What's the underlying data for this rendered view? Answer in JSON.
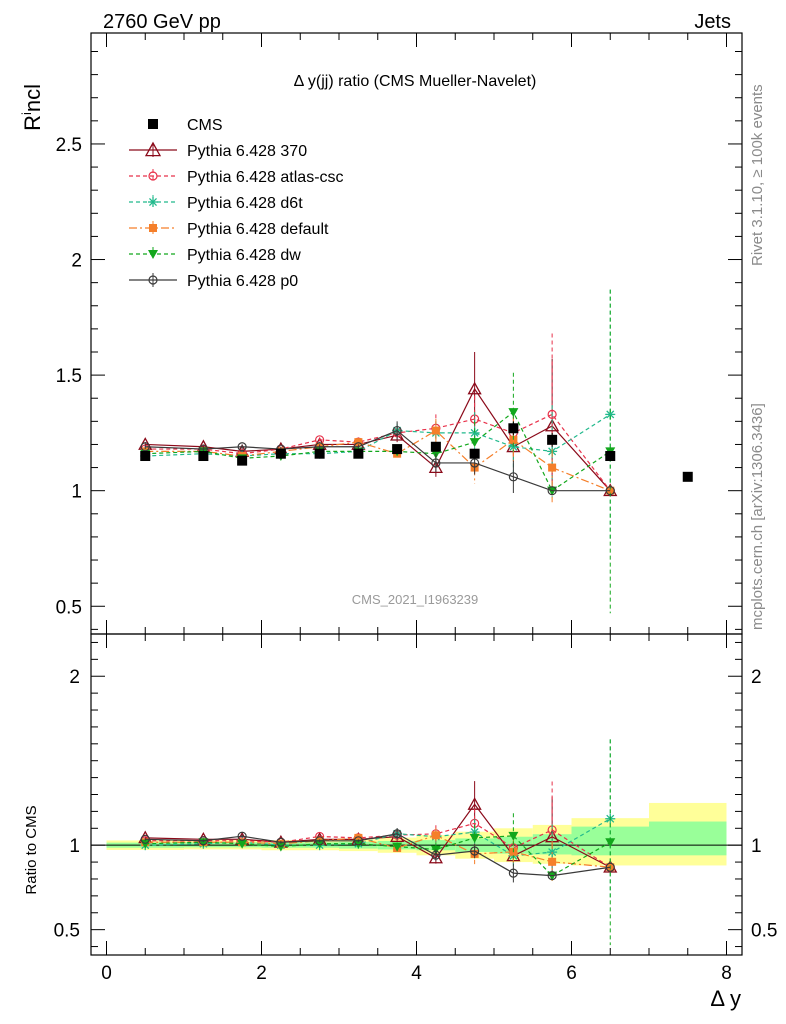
{
  "header": {
    "left": "2760 GeV pp",
    "right": "Jets"
  },
  "side_texts": {
    "rivet": "Rivet 3.1.10, ≥ 100k events",
    "mcplots": "mcplots.cern.ch [arXiv:1306.3436]"
  },
  "chart_data": {
    "type": "scatter",
    "title": "Δ y(jj) ratio (CMS Mueller-Navelet)",
    "ylabel": "R^incl",
    "ratio_ylabel": "Ratio to CMS",
    "xlabel": "Δ y",
    "watermark": "CMS_2021_I1963239",
    "xlim": [
      -0.2,
      8.2
    ],
    "ylim": [
      0.38,
      2.98
    ],
    "ratio_ylim": [
      0.35,
      2.25
    ],
    "x_ticks": [
      "0",
      "2",
      "4",
      "6",
      "8"
    ],
    "y_ticks": [
      "0.5",
      "1",
      "1.5",
      "2",
      "2.5"
    ],
    "ratio_y_ticks": [
      "0.5",
      "1",
      "2"
    ],
    "bands": [
      {
        "x0": 0.0,
        "x1": 1.0,
        "y_lo": 0.972,
        "y_hi": 1.028,
        "inner_lo": 0.985,
        "inner_hi": 1.015
      },
      {
        "x0": 1.0,
        "x1": 2.0,
        "y_lo": 0.975,
        "y_hi": 1.03,
        "inner_lo": 0.987,
        "inner_hi": 1.017
      },
      {
        "x0": 2.0,
        "x1": 3.0,
        "y_lo": 0.97,
        "y_hi": 1.03,
        "inner_lo": 0.985,
        "inner_hi": 1.017
      },
      {
        "x0": 3.0,
        "x1": 3.5,
        "y_lo": 0.965,
        "y_hi": 1.035,
        "inner_lo": 0.98,
        "inner_hi": 1.02
      },
      {
        "x0": 3.5,
        "x1": 4.0,
        "y_lo": 0.955,
        "y_hi": 1.045,
        "inner_lo": 0.975,
        "inner_hi": 1.025
      },
      {
        "x0": 4.0,
        "x1": 4.5,
        "y_lo": 0.94,
        "y_hi": 1.06,
        "inner_lo": 0.97,
        "inner_hi": 1.03
      },
      {
        "x0": 4.5,
        "x1": 5.0,
        "y_lo": 0.92,
        "y_hi": 1.08,
        "inner_lo": 0.96,
        "inner_hi": 1.04
      },
      {
        "x0": 5.0,
        "x1": 5.5,
        "y_lo": 0.9,
        "y_hi": 1.1,
        "inner_lo": 0.95,
        "inner_hi": 1.05
      },
      {
        "x0": 5.5,
        "x1": 6.0,
        "y_lo": 0.89,
        "y_hi": 1.12,
        "inner_lo": 0.945,
        "inner_hi": 1.065
      },
      {
        "x0": 6.0,
        "x1": 7.0,
        "y_lo": 0.88,
        "y_hi": 1.16,
        "inner_lo": 0.94,
        "inner_hi": 1.11
      },
      {
        "x0": 7.0,
        "x1": 8.0,
        "y_lo": 0.88,
        "y_hi": 1.25,
        "inner_lo": 0.94,
        "inner_hi": 1.14
      }
    ],
    "data": {
      "name": "CMS",
      "x": [
        0.5,
        1.25,
        1.75,
        2.25,
        2.75,
        3.25,
        3.75,
        4.25,
        4.75,
        5.25,
        5.75,
        6.5,
        7.5
      ],
      "y": [
        1.15,
        1.15,
        1.13,
        1.16,
        1.16,
        1.16,
        1.18,
        1.19,
        1.16,
        1.27,
        1.22,
        1.15,
        1.06
      ],
      "err": [
        0.01,
        0.01,
        0.01,
        0.01,
        0.01,
        0.01,
        0.02,
        0.02,
        0.02,
        0.03,
        0.03,
        0.02,
        0.02
      ]
    },
    "series": [
      {
        "name": "Pythia 6.428 370",
        "color": "#8b0a1a",
        "marker": "triangle-open",
        "dash": "",
        "size": 6,
        "x": [
          0.5,
          1.25,
          1.75,
          2.25,
          2.75,
          3.25,
          3.75,
          4.25,
          4.75,
          5.25,
          5.75,
          6.5
        ],
        "y": [
          1.2,
          1.19,
          1.17,
          1.18,
          1.2,
          1.2,
          1.24,
          1.1,
          1.44,
          1.19,
          1.28,
          1.0
        ],
        "err": [
          0.01,
          0.01,
          0.01,
          0.01,
          0.01,
          0.01,
          0.03,
          0.04,
          0.16,
          0.06,
          0.29,
          0.0
        ]
      },
      {
        "name": "Pythia 6.428 atlas-csc",
        "color": "#e8314a",
        "marker": "circle-open",
        "dash": "4,3",
        "size": 4,
        "x": [
          0.5,
          1.25,
          1.75,
          2.25,
          2.75,
          3.25,
          3.75,
          4.25,
          4.75,
          5.25,
          5.75,
          6.5
        ],
        "y": [
          1.18,
          1.18,
          1.16,
          1.18,
          1.22,
          1.21,
          1.25,
          1.27,
          1.31,
          1.25,
          1.33,
          1.0
        ],
        "err": [
          0.01,
          0.01,
          0.01,
          0.01,
          0.01,
          0.01,
          0.03,
          0.06,
          0.1,
          0.1,
          0.35,
          0.0
        ]
      },
      {
        "name": "Pythia 6.428 d6t",
        "color": "#21b98c",
        "marker": "star",
        "dash": "4,3",
        "size": 5,
        "x": [
          0.5,
          1.25,
          1.75,
          2.25,
          2.75,
          3.25,
          3.75,
          4.25,
          4.75,
          5.25,
          5.75,
          6.5
        ],
        "y": [
          1.15,
          1.16,
          1.15,
          1.16,
          1.16,
          1.17,
          1.26,
          1.25,
          1.25,
          1.19,
          1.17,
          1.33
        ],
        "err": [
          0.01,
          0.01,
          0.01,
          0.01,
          0.01,
          0.01,
          0.03,
          0.05,
          0.09,
          0.11,
          0.2,
          0.54
        ]
      },
      {
        "name": "Pythia 6.428 default",
        "color": "#f57f2a",
        "marker": "square",
        "dash": "8,3,2,3",
        "size": 4,
        "x": [
          0.5,
          1.25,
          1.75,
          2.25,
          2.75,
          3.25,
          3.75,
          4.25,
          4.75,
          5.25,
          5.75,
          6.5
        ],
        "y": [
          1.17,
          1.17,
          1.15,
          1.17,
          1.19,
          1.21,
          1.16,
          1.26,
          1.1,
          1.22,
          1.1,
          1.0
        ],
        "err": [
          0.01,
          0.01,
          0.01,
          0.01,
          0.01,
          0.01,
          0.02,
          0.05,
          0.07,
          0.1,
          0.15,
          0.0
        ]
      },
      {
        "name": "Pythia 6.428 dw",
        "color": "#12a71c",
        "marker": "triangle-down",
        "dash": "4,3",
        "size": 5,
        "x": [
          0.5,
          1.25,
          1.75,
          2.25,
          2.75,
          3.25,
          3.75,
          4.25,
          4.75,
          5.25,
          5.75,
          6.5
        ],
        "y": [
          1.16,
          1.17,
          1.14,
          1.15,
          1.17,
          1.17,
          1.17,
          1.16,
          1.21,
          1.34,
          1.0,
          1.17
        ],
        "err": [
          0.01,
          0.01,
          0.01,
          0.01,
          0.01,
          0.01,
          0.03,
          0.05,
          0.09,
          0.17,
          0.0,
          0.7
        ]
      },
      {
        "name": "Pythia 6.428 p0",
        "color": "#3a3a3a",
        "marker": "circle-open",
        "dash": "",
        "size": 4,
        "x": [
          0.5,
          1.25,
          1.75,
          2.25,
          2.75,
          3.25,
          3.75,
          4.25,
          4.75,
          5.25,
          5.75,
          6.5
        ],
        "y": [
          1.19,
          1.18,
          1.19,
          1.18,
          1.19,
          1.19,
          1.26,
          1.12,
          1.12,
          1.06,
          1.0,
          1.0
        ],
        "err": [
          0.01,
          0.01,
          0.01,
          0.01,
          0.01,
          0.01,
          0.04,
          0.04,
          0.05,
          0.07,
          0.0,
          0.0
        ]
      }
    ]
  }
}
